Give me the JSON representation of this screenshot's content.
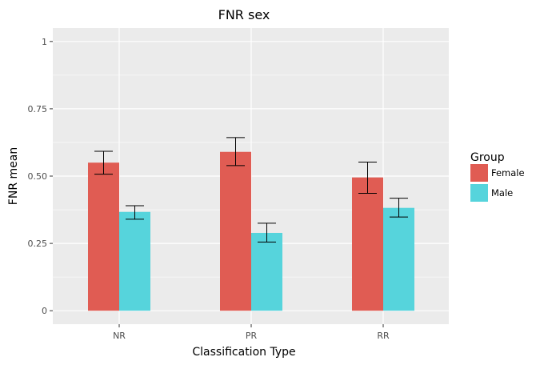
{
  "chart_data": {
    "type": "bar",
    "title": "FNR sex",
    "xlabel": "Classification Type",
    "ylabel": "FNR mean",
    "categories": [
      "NR",
      "PR",
      "RR"
    ],
    "ylim": [
      -0.05,
      1.05
    ],
    "yticks": [
      0,
      0.25,
      0.5,
      0.75,
      1
    ],
    "ytick_labels": [
      "0",
      "0.25",
      "0.50",
      "0.75",
      "1"
    ],
    "grid": true,
    "legend": {
      "title": "Group",
      "placement": "right"
    },
    "series": [
      {
        "name": "Female",
        "color": "#e05c53",
        "values": [
          0.55,
          0.59,
          0.495
        ],
        "error_low": [
          0.507,
          0.539,
          0.436
        ],
        "error_high": [
          0.592,
          0.643,
          0.552
        ]
      },
      {
        "name": "Male",
        "color": "#56d4dc",
        "values": [
          0.367,
          0.289,
          0.382
        ],
        "error_low": [
          0.34,
          0.255,
          0.348
        ],
        "error_high": [
          0.39,
          0.325,
          0.418
        ]
      }
    ],
    "panel_background": "#ebebeb",
    "grid_color": "#ffffff"
  }
}
